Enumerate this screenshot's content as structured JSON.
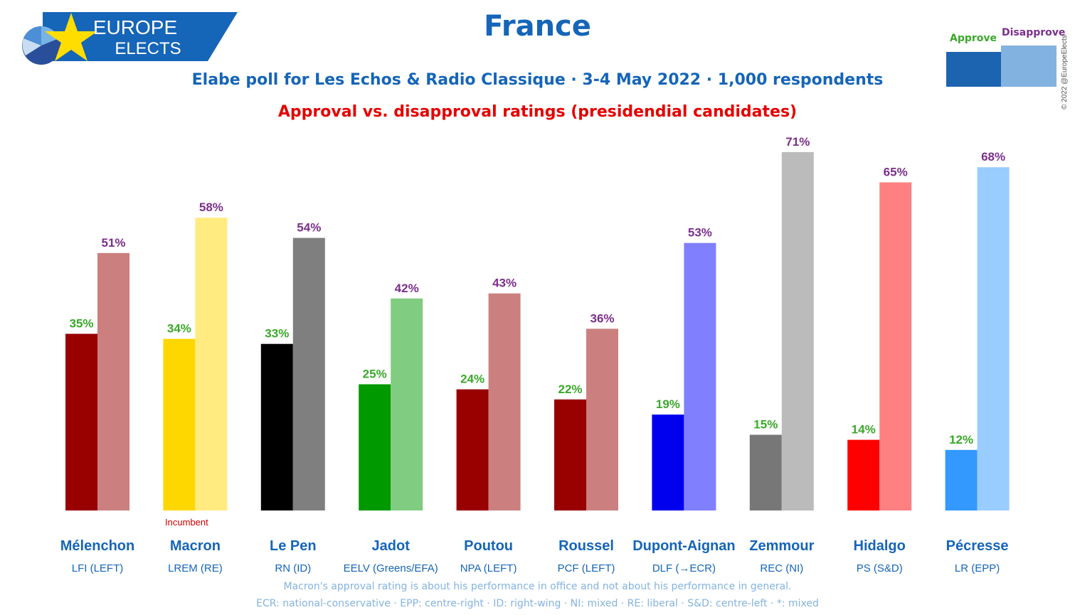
{
  "header": {
    "logo_line1": "EUROPE",
    "logo_line2": "ELECTS",
    "title": "France",
    "subtitle": "Elabe poll for Les Echos & Radio Classique · 3-4 May 2022 · 1,000 respondents",
    "heading": "Approval vs. disapproval ratings (presidendial candidates)",
    "copyright": "© 2022 @EuropeElects"
  },
  "legend": {
    "approve": "Approve",
    "disapprove": "Disapprove"
  },
  "colors": {
    "brand_blue": "#1565b8",
    "approve_label": "#3aa82a",
    "disapprove_label": "#7b2f8c",
    "heading_red": "#e60000",
    "footnote": "#84b3e0"
  },
  "chart_data": {
    "type": "bar",
    "title": "Approval vs. disapproval ratings (presidendial candidates)",
    "xlabel": "",
    "ylabel": "",
    "ylim": [
      0,
      75
    ],
    "categories": [
      "Mélenchon",
      "Macron",
      "Le Pen",
      "Jadot",
      "Poutou",
      "Roussel",
      "Dupont-Aignan",
      "Zemmour",
      "Hidalgo",
      "Pécresse"
    ],
    "parties": [
      "LFI (LEFT)",
      "LREM (RE)",
      "RN (ID)",
      "EELV (Greens/EFA)",
      "NPA (LEFT)",
      "PCF (LEFT)",
      "DLF (→ECR)",
      "REC (NI)",
      "PS (S&D)",
      "LR (EPP)"
    ],
    "annotations": [
      {
        "category": "Macron",
        "text": "Incumbent"
      }
    ],
    "series": [
      {
        "name": "Approve",
        "values": [
          35,
          34,
          33,
          25,
          24,
          22,
          19,
          15,
          14,
          12
        ],
        "colors": [
          "#990000",
          "#ffd700",
          "#000000",
          "#009900",
          "#990000",
          "#990000",
          "#0000ee",
          "#777777",
          "#ff0000",
          "#3399ff"
        ]
      },
      {
        "name": "Disapprove",
        "values": [
          51,
          58,
          54,
          42,
          43,
          36,
          53,
          71,
          65,
          68
        ],
        "colors": [
          "#cc7f7f",
          "#ffeb80",
          "#7f7f7f",
          "#80cc80",
          "#cc7f7f",
          "#cc7f7f",
          "#8080ff",
          "#bbbbbb",
          "#ff8080",
          "#99ccff"
        ]
      }
    ]
  },
  "footnotes": {
    "line1": "Macron's approval rating is about his performance in office and not about his performance in general.",
    "line2": "ECR: national-conservative · EPP: centre-right · ID: right-wing · NI: mixed · RE: liberal · S&D: centre-left · *: mixed"
  }
}
